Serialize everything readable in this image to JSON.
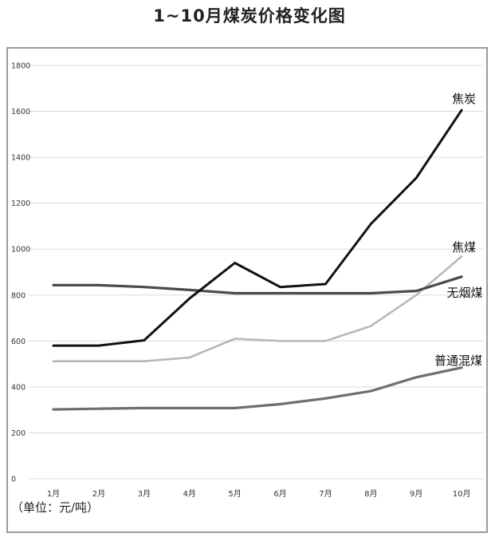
{
  "chart_data": {
    "type": "line",
    "title": "1~10月煤炭价格变化图",
    "unit_note": "（单位：元/吨）",
    "categories": [
      "1月",
      "2月",
      "3月",
      "4月",
      "5月",
      "6月",
      "7月",
      "8月",
      "9月",
      "10月"
    ],
    "ylim": [
      0,
      1800
    ],
    "yticks": [
      0,
      200,
      400,
      600,
      800,
      1000,
      1200,
      1400,
      1600,
      1800
    ],
    "grid": true,
    "legend": "inline labels at line ends",
    "series": [
      {
        "name": "焦炭",
        "color": "#111111",
        "values": [
          580,
          580,
          603,
          785,
          940,
          835,
          848,
          1110,
          1310,
          1605
        ]
      },
      {
        "name": "焦煤",
        "color": "#b8b8b8",
        "values": [
          512,
          512,
          512,
          528,
          610,
          600,
          600,
          665,
          800,
          968
        ]
      },
      {
        "name": "无烟煤",
        "color": "#4a4a4a",
        "values": [
          843,
          843,
          835,
          822,
          808,
          808,
          808,
          808,
          818,
          880
        ]
      },
      {
        "name": "普通混煤",
        "color": "#6e6e6e",
        "values": [
          302,
          305,
          308,
          308,
          308,
          325,
          350,
          382,
          442,
          484
        ]
      }
    ]
  }
}
